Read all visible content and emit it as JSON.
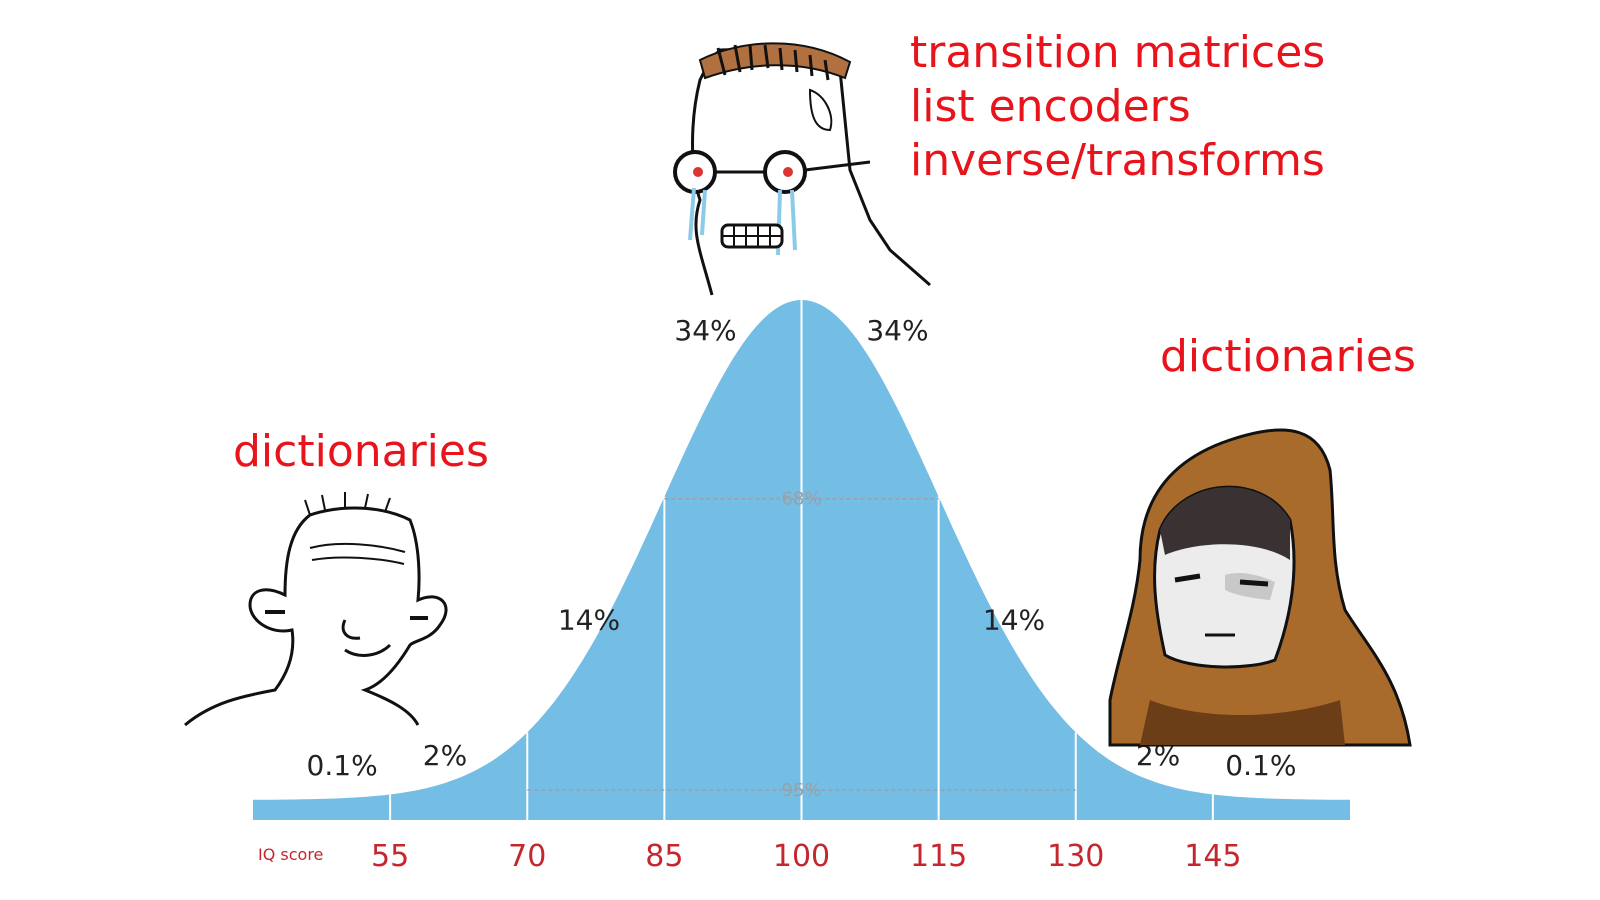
{
  "captions": {
    "top": [
      "transition matrices",
      "list encoders",
      "inverse/transforms"
    ],
    "left": "dictionaries",
    "right": "dictionaries"
  },
  "characters": {
    "left": "low-iq-wojak",
    "middle": "crying-wojak",
    "right": "hooded-wojak"
  },
  "chart_data": {
    "type": "area",
    "title": "",
    "xlabel": "IQ score",
    "ylabel": "",
    "x_ticks": [
      55,
      70,
      85,
      100,
      115,
      130,
      145
    ],
    "xlim": [
      40,
      160
    ],
    "distribution": {
      "mean": 100,
      "sd": 15
    },
    "band_labels": [
      "0.1%",
      "2%",
      "14%",
      "34%",
      "34%",
      "14%",
      "2%",
      "0.1%"
    ],
    "inner_labels": [
      "68%",
      "95%"
    ],
    "grid": false,
    "colors": {
      "curve": "#74bde4",
      "ticks": "#c4272e",
      "captions": "#e8131b"
    }
  }
}
